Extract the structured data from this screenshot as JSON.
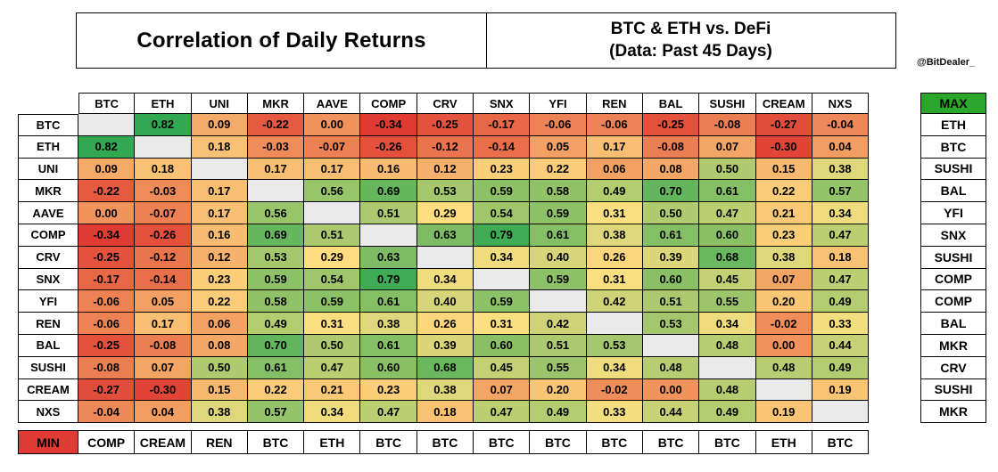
{
  "header": {
    "title": "Correlation of Daily Returns",
    "subtitle_line1": "BTC & ETH vs. DeFi",
    "subtitle_line2": "(Data: Past 45 Days)",
    "attribution": "@BitDealer_"
  },
  "chart_data": {
    "type": "heatmap",
    "title": "Correlation of Daily Returns",
    "subtitle": "BTC & ETH vs. DeFi (Data: Past 45 Days)",
    "columns": [
      "BTC",
      "ETH",
      "UNI",
      "MKR",
      "AAVE",
      "COMP",
      "CRV",
      "SNX",
      "YFI",
      "REN",
      "BAL",
      "SUSHI",
      "CREAM",
      "NXS"
    ],
    "rows": [
      "BTC",
      "ETH",
      "UNI",
      "MKR",
      "AAVE",
      "COMP",
      "CRV",
      "SNX",
      "YFI",
      "REN",
      "BAL",
      "SUSHI",
      "CREAM",
      "NXS"
    ],
    "matrix": [
      [
        null,
        0.82,
        0.09,
        -0.22,
        0.0,
        -0.34,
        -0.25,
        -0.17,
        -0.06,
        -0.06,
        -0.25,
        -0.08,
        -0.27,
        -0.04
      ],
      [
        0.82,
        null,
        0.18,
        -0.03,
        -0.07,
        -0.26,
        -0.12,
        -0.14,
        0.05,
        0.17,
        -0.08,
        0.07,
        -0.3,
        0.04
      ],
      [
        0.09,
        0.18,
        null,
        0.17,
        0.17,
        0.16,
        0.12,
        0.23,
        0.22,
        0.06,
        0.08,
        0.5,
        0.15,
        0.38
      ],
      [
        -0.22,
        -0.03,
        0.17,
        null,
        0.56,
        0.69,
        0.53,
        0.59,
        0.58,
        0.49,
        0.7,
        0.61,
        0.22,
        0.57
      ],
      [
        0.0,
        -0.07,
        0.17,
        0.56,
        null,
        0.51,
        0.29,
        0.54,
        0.59,
        0.31,
        0.5,
        0.47,
        0.21,
        0.34
      ],
      [
        -0.34,
        -0.26,
        0.16,
        0.69,
        0.51,
        null,
        0.63,
        0.79,
        0.61,
        0.38,
        0.61,
        0.6,
        0.23,
        0.47
      ],
      [
        -0.25,
        -0.12,
        0.12,
        0.53,
        0.29,
        0.63,
        null,
        0.34,
        0.4,
        0.26,
        0.39,
        0.68,
        0.38,
        0.18
      ],
      [
        -0.17,
        -0.14,
        0.23,
        0.59,
        0.54,
        0.79,
        0.34,
        null,
        0.59,
        0.31,
        0.6,
        0.45,
        0.07,
        0.47
      ],
      [
        -0.06,
        0.05,
        0.22,
        0.58,
        0.59,
        0.61,
        0.4,
        0.59,
        null,
        0.42,
        0.51,
        0.55,
        0.2,
        0.49
      ],
      [
        -0.06,
        0.17,
        0.06,
        0.49,
        0.31,
        0.38,
        0.26,
        0.31,
        0.42,
        null,
        0.53,
        0.34,
        -0.02,
        0.33
      ],
      [
        -0.25,
        -0.08,
        0.08,
        0.7,
        0.5,
        0.61,
        0.39,
        0.6,
        0.51,
        0.53,
        null,
        0.48,
        0.0,
        0.44
      ],
      [
        -0.08,
        0.07,
        0.5,
        0.61,
        0.47,
        0.6,
        0.68,
        0.45,
        0.55,
        0.34,
        0.48,
        null,
        0.48,
        0.49
      ],
      [
        -0.27,
        -0.3,
        0.15,
        0.22,
        0.21,
        0.23,
        0.38,
        0.07,
        0.2,
        -0.02,
        0.0,
        0.48,
        null,
        0.19
      ],
      [
        -0.04,
        0.04,
        0.38,
        0.57,
        0.34,
        0.47,
        0.18,
        0.47,
        0.49,
        0.33,
        0.44,
        0.49,
        0.19,
        null
      ]
    ],
    "max_label": "MAX",
    "max_partner": [
      "ETH",
      "BTC",
      "SUSHI",
      "BAL",
      "YFI",
      "SNX",
      "SUSHI",
      "COMP",
      "COMP",
      "BAL",
      "MKR",
      "CRV",
      "SUSHI",
      "MKR"
    ],
    "min_label": "MIN",
    "min_partner": [
      "COMP",
      "CREAM",
      "REN",
      "BTC",
      "ETH",
      "BTC",
      "BTC",
      "BTC",
      "BTC",
      "BTC",
      "BTC",
      "BTC",
      "ETH",
      "BTC"
    ],
    "scale": {
      "min": -0.34,
      "mid": 0.3,
      "max": 0.82
    },
    "colors": {
      "negative": "#E03B32",
      "middle": "#FEE082",
      "positive": "#33A852",
      "diagonal": "#EAEAEA",
      "max_header_bg": "#2BA52B",
      "min_header_bg": "#E03B32"
    }
  }
}
